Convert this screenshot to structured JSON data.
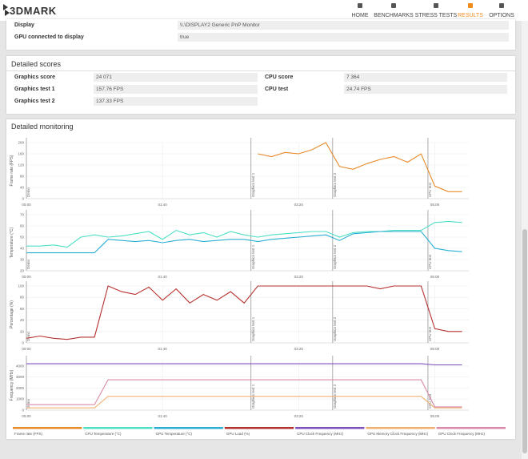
{
  "header": {
    "logo": "3DMARK",
    "nav": [
      "HOME",
      "BENCHMARKS",
      "STRESS TESTS",
      "RESULTS",
      "OPTIONS"
    ],
    "active": 3
  },
  "display_info": {
    "rows": [
      [
        "Display",
        "\\\\.\\DISPLAY2 Generic PnP Monitor"
      ],
      [
        "GPU connected to display",
        "true"
      ]
    ]
  },
  "scores": {
    "title": "Detailed scores",
    "left": [
      [
        "Graphics score",
        "24 071"
      ],
      [
        "Graphics test 1",
        "157.76 FPS"
      ],
      [
        "Graphics test 2",
        "137.33 FPS"
      ]
    ],
    "right": [
      [
        "CPU score",
        "7 364"
      ],
      [
        "CPU test",
        "24.74 FPS"
      ]
    ]
  },
  "monitoring": {
    "title": "Detailed monitoring",
    "x": [
      0,
      10,
      20,
      30,
      40,
      50,
      60,
      70,
      80,
      90,
      100,
      110,
      120,
      130,
      140,
      150,
      160,
      170,
      180,
      190,
      200,
      210,
      220,
      230,
      240,
      250,
      260,
      270,
      280,
      290,
      300,
      310,
      320
    ],
    "xlim": [
      0,
      325
    ],
    "xticks": [
      {
        "value": 0,
        "label": "00:00"
      },
      {
        "value": 100,
        "label": "01:40"
      },
      {
        "value": 200,
        "label": "03:20"
      },
      {
        "value": 300,
        "label": "05:00"
      }
    ],
    "markers": [
      {
        "label": "Demo",
        "time": 0
      },
      {
        "label": "Graphics test 1",
        "time": 165
      },
      {
        "label": "Graphics test 2",
        "time": 225
      },
      {
        "label": "CPU test",
        "time": 295
      }
    ],
    "charts": [
      {
        "ylabel": "Frame rate (FPS)",
        "ylim": [
          0,
          200
        ],
        "yticks": [
          0,
          40,
          80,
          120,
          160,
          200
        ],
        "series": [
          {
            "name": "Frame rate (FPS)",
            "color": "#e8892a",
            "values": [
              null,
              null,
              null,
              null,
              null,
              null,
              null,
              null,
              null,
              null,
              null,
              null,
              null,
              null,
              null,
              null,
              null,
              160,
              150,
              165,
              160,
              175,
              200,
              115,
              105,
              125,
              140,
              150,
              130,
              160,
              45,
              25,
              25
            ]
          }
        ]
      },
      {
        "ylabel": "Temperature (°C)",
        "ylim": [
          20,
          70
        ],
        "yticks": [
          20,
          30,
          40,
          50,
          60,
          70
        ],
        "series": [
          {
            "name": "CPU Temperature (°C)",
            "color": "#4ee0c6",
            "values": [
              42,
              42,
              43,
              41,
              50,
              52,
              50,
              51,
              53,
              55,
              48,
              56,
              52,
              54,
              50,
              55,
              52,
              50,
              52,
              53,
              54,
              55,
              55,
              50,
              54,
              55,
              55,
              56,
              56,
              56,
              63,
              64,
              63
            ]
          },
          {
            "name": "GPU Temperature (°C)",
            "color": "#2aaed4",
            "values": [
              36,
              36,
              36,
              36,
              36,
              36,
              48,
              47,
              46,
              47,
              45,
              47,
              48,
              46,
              47,
              48,
              48,
              46,
              48,
              49,
              50,
              51,
              52,
              47,
              53,
              54,
              55,
              55,
              55,
              55,
              40,
              38,
              37
            ]
          }
        ]
      },
      {
        "ylabel": "Percentage (%)",
        "ylim": [
          0,
          100
        ],
        "yticks": [
          0,
          20,
          40,
          60,
          80,
          100
        ],
        "series": [
          {
            "name": "GPU Load (%)",
            "color": "#b5312f",
            "values": [
              8,
              12,
              8,
              6,
              10,
              10,
              100,
              90,
              85,
              98,
              75,
              95,
              70,
              85,
              75,
              90,
              70,
              100,
              100,
              100,
              100,
              100,
              100,
              100,
              100,
              100,
              95,
              100,
              100,
              100,
              25,
              20,
              20
            ]
          }
        ]
      },
      {
        "ylabel": "Frequency (MHz)",
        "ylim": [
          0,
          4500
        ],
        "yticks": [
          0,
          1000,
          2000,
          3000,
          4000
        ],
        "series": [
          {
            "name": "CPU Clock Frequency (MHz)",
            "color": "#7d4fbf",
            "values": [
              4200,
              4200,
              4200,
              4200,
              4200,
              4200,
              4200,
              4200,
              4200,
              4200,
              4200,
              4200,
              4200,
              4200,
              4200,
              4200,
              4200,
              4200,
              4200,
              4200,
              4200,
              4200,
              4200,
              4200,
              4200,
              4200,
              4200,
              4200,
              4200,
              4200,
              4100,
              4100,
              4100
            ]
          },
          {
            "name": "GPU Memory Clock Frequency (MHz)",
            "color": "#f0b070",
            "values": [
              200,
              200,
              200,
              200,
              200,
              200,
              1250,
              1250,
              1250,
              1250,
              1250,
              1250,
              1250,
              1250,
              1250,
              1250,
              1250,
              1250,
              1250,
              1250,
              1250,
              1250,
              1250,
              1250,
              1250,
              1250,
              1250,
              1250,
              1250,
              1250,
              200,
              200,
              200
            ]
          },
          {
            "name": "GPU Clock Frequency (MHz)",
            "color": "#d98aa8",
            "values": [
              500,
              500,
              500,
              500,
              500,
              500,
              2750,
              2750,
              2750,
              2750,
              2750,
              2750,
              2750,
              2750,
              2750,
              2750,
              2750,
              2750,
              2750,
              2750,
              2750,
              2750,
              2750,
              2750,
              2750,
              2750,
              2750,
              2750,
              2750,
              2750,
              300,
              300,
              300
            ]
          }
        ]
      }
    ]
  }
}
